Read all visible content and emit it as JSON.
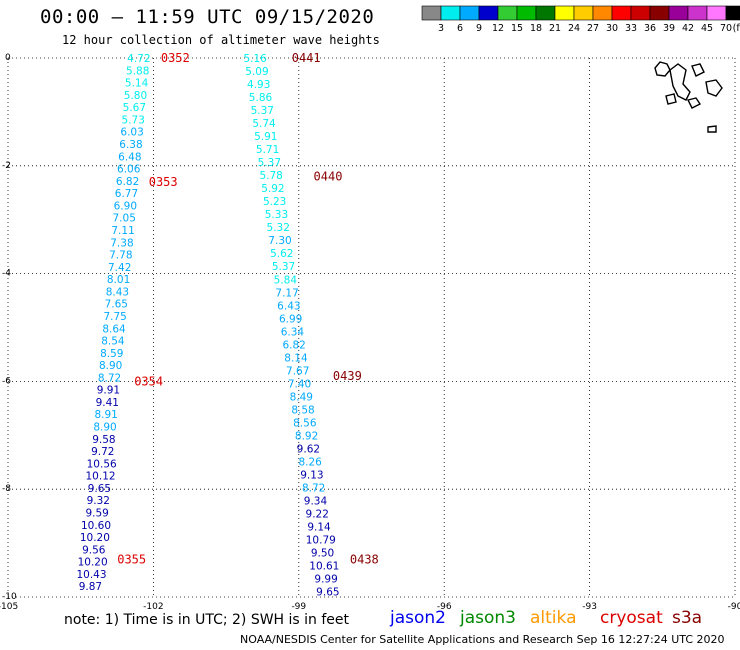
{
  "header": {
    "title": "00:00 – 11:59 UTC 09/15/2020",
    "subtitle": "12 hour collection of altimeter wave heights"
  },
  "footer": {
    "note": "note:  1) Time is in UTC;  2) SWH is in feet",
    "credit": "NOAA/NESDIS Center for Satellite Applications and Research    Sep 16 12:27:24 UTC 2020"
  },
  "satellites": [
    {
      "label": "jason2",
      "color": "#0000ee"
    },
    {
      "label": "jason3",
      "color": "#008800"
    },
    {
      "label": "altika",
      "color": "#ff9900"
    },
    {
      "label": "cryosat",
      "color": "#dd0000"
    },
    {
      "label": "s3a",
      "color": "#880000"
    }
  ],
  "legend": {
    "labels": [
      "3",
      "6",
      "9",
      "12",
      "15",
      "18",
      "21",
      "24",
      "27",
      "30",
      "33",
      "36",
      "39",
      "42",
      "45",
      "70"
    ],
    "unit": "(ft)",
    "colors": [
      "#888888",
      "#00eeee",
      "#00aaff",
      "#0000cc",
      "#33cc33",
      "#00bb00",
      "#007700",
      "#ffff00",
      "#ffcc00",
      "#ff8800",
      "#ff0000",
      "#cc0000",
      "#880000",
      "#990099",
      "#cc33cc",
      "#ff77ff",
      "#000000"
    ]
  },
  "chart_data": {
    "type": "scatter",
    "xlim": [
      -105,
      -90
    ],
    "ylim": [
      -10,
      0
    ],
    "xticks": [
      "-105",
      "-102",
      "-99",
      "-96",
      "-93",
      "-90"
    ],
    "yticks": [
      "0",
      "-2",
      "-4",
      "-6",
      "-8",
      "-10"
    ],
    "grid": true,
    "series": [
      {
        "satellite": "cryosat",
        "start": {
          "lon": -102.3,
          "lat": 0.0
        },
        "end": {
          "lon": -103.3,
          "lat": -9.8
        },
        "values": [
          "4.72",
          "5.88",
          "5.14",
          "5.80",
          "5.67",
          "5.73",
          "6.03",
          "6.38",
          "6.48",
          "6.06",
          "6.82",
          "6.77",
          "6.90",
          "7.05",
          "7.11",
          "7.38",
          "7.78",
          "7.42",
          "8.01",
          "8.43",
          "7.65",
          "7.75",
          "8.64",
          "8.54",
          "8.59",
          "8.90",
          "8.72",
          "9.91",
          "9.41",
          "8.91",
          "8.90",
          "9.58",
          "9.72",
          "10.56",
          "10.12",
          "9.65",
          "9.32",
          "9.59",
          "10.60",
          "10.20",
          "9.56",
          "10.20",
          "10.43",
          "9.87"
        ],
        "times": [
          {
            "label": "0352",
            "lat": 0.0,
            "lon": -102.3
          },
          {
            "label": "0353",
            "lat": -2.3,
            "lon": -102.55
          },
          {
            "label": "0354",
            "lat": -6.0,
            "lon": -102.85
          },
          {
            "label": "0355",
            "lat": -9.3,
            "lon": -103.2
          }
        ]
      },
      {
        "satellite": "s3a",
        "start": {
          "lon": -99.9,
          "lat": 0.0
        },
        "end": {
          "lon": -98.4,
          "lat": -9.9
        },
        "values": [
          "5.16",
          "5.09",
          "4.93",
          "5.86",
          "5.37",
          "5.74",
          "5.91",
          "5.71",
          "5.37",
          "5.78",
          "5.92",
          "5.23",
          "5.33",
          "5.32",
          "7.30",
          "5.62",
          "5.37",
          "5.84",
          "7.17",
          "6.43",
          "6.99",
          "6.34",
          "6.82",
          "8.14",
          "7.67",
          "7.40",
          "8.49",
          "8.58",
          "8.56",
          "8.92",
          "9.62",
          "8.26",
          "9.13",
          "8.72",
          "9.34",
          "9.22",
          "9.14",
          "10.79",
          "9.50",
          "10.61",
          "9.99",
          "9.65"
        ],
        "times": [
          {
            "label": "0441",
            "lat": 0.0,
            "lon": -99.6
          },
          {
            "label": "0440",
            "lat": -2.2,
            "lon": -99.15
          },
          {
            "label": "0439",
            "lat": -5.9,
            "lon": -98.75
          },
          {
            "label": "0438",
            "lat": -9.3,
            "lon": -98.4
          }
        ]
      }
    ]
  }
}
